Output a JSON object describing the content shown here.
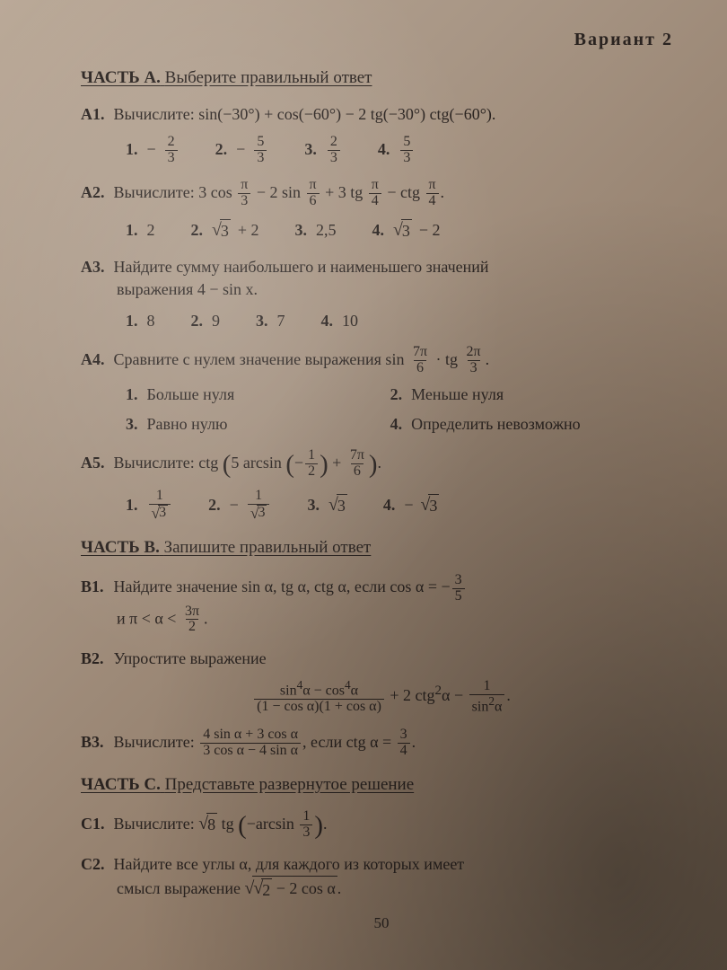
{
  "variant": "Вариант 2",
  "partA": {
    "title_bold": "ЧАСТЬ А.",
    "title_rest": "Выберите правильный ответ",
    "A1": {
      "label": "А1.",
      "text": "Вычислите: sin(−30°) + cos(−60°) − 2 tg(−30°) ctg(−60°).",
      "ans1_n": "1.",
      "ans2_n": "2.",
      "ans3_n": "3.",
      "ans4_n": "4."
    },
    "A2": {
      "label": "А2.",
      "ans1_n": "1.",
      "ans1": "2",
      "ans2_n": "2.",
      "ans3_n": "3.",
      "ans3": "2,5",
      "ans4_n": "4."
    },
    "A3": {
      "label": "А3.",
      "line1": "Найдите сумму наибольшего и наименьшего значений",
      "line2": "выражения 4 − sin x.",
      "ans1_n": "1.",
      "ans1": "8",
      "ans2_n": "2.",
      "ans2": "9",
      "ans3_n": "3.",
      "ans3": "7",
      "ans4_n": "4.",
      "ans4": "10"
    },
    "A4": {
      "label": "А4.",
      "ans1_n": "1.",
      "ans1": "Больше нуля",
      "ans2_n": "2.",
      "ans2": "Меньше нуля",
      "ans3_n": "3.",
      "ans3": "Равно нулю",
      "ans4_n": "4.",
      "ans4": "Определить невозможно"
    },
    "A5": {
      "label": "А5.",
      "ans1_n": "1.",
      "ans2_n": "2.",
      "ans3_n": "3.",
      "ans4_n": "4."
    }
  },
  "partB": {
    "title_bold": "ЧАСТЬ В.",
    "title_rest": "Запишите правильный ответ",
    "B1": {
      "label": "В1."
    },
    "B2": {
      "label": "В2.",
      "text": "Упростите выражение"
    },
    "B3": {
      "label": "В3."
    }
  },
  "partC": {
    "title_bold": "ЧАСТЬ С.",
    "title_rest": "Представьте развернутое решение",
    "C1": {
      "label": "С1."
    },
    "C2": {
      "label": "С2.",
      "line1": "Найдите все углы α, для каждого из которых имеет"
    }
  },
  "pagenum": "50"
}
